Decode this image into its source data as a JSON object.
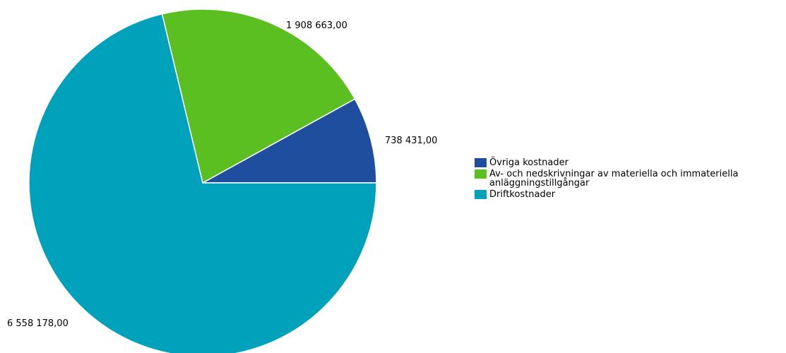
{
  "chart_data": {
    "type": "pie",
    "slices": [
      {
        "label": "Övriga kostnader",
        "value": 738431.0,
        "display_value": "738 431,00",
        "color": "#1f4e9e"
      },
      {
        "label": "Av- och nedskrivningar av materiella och immateriella anläggningstillgångar",
        "value": 1908663.0,
        "display_value": "1 908 663,00",
        "color": "#5cbf21"
      },
      {
        "label": "Driftkostnader",
        "value": 6558178.0,
        "display_value": "6 558 178,00",
        "color": "#00a1ba"
      }
    ],
    "start_angle_deg": 0,
    "direction": "counterclockwise",
    "legend_position": "right"
  }
}
